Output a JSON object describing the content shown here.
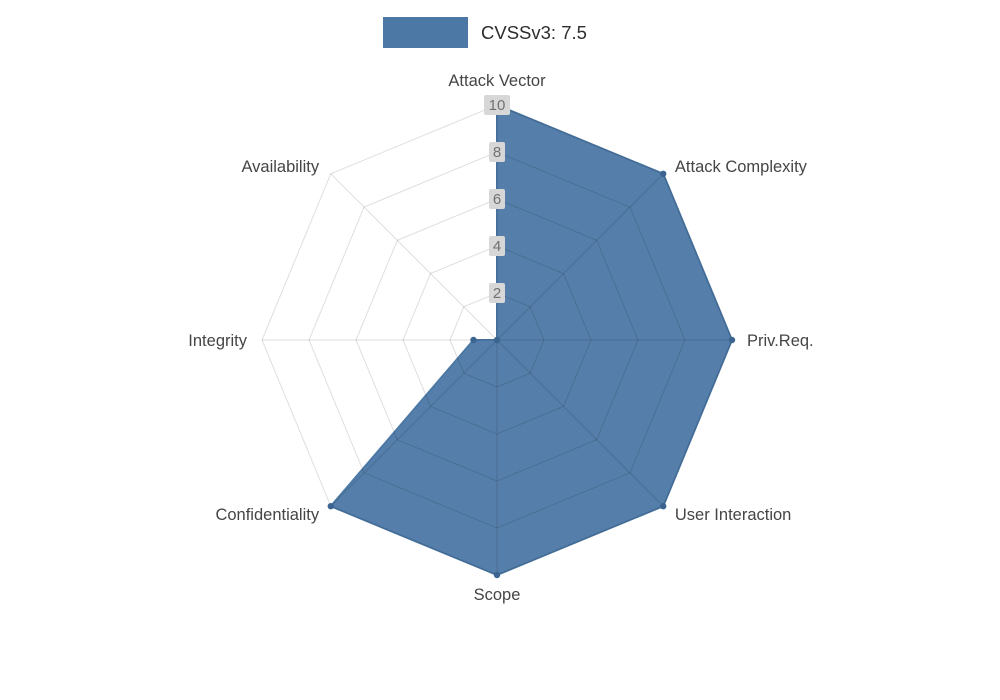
{
  "legend": {
    "label": "CVSSv3: 7.5"
  },
  "colors": {
    "series": "#4c78a5",
    "series_point": "#3b6590",
    "grid": "rgba(0,0,0,0.13)",
    "tick_box": "#d7d7d7",
    "tick_text": "#717171",
    "axis_label": "#454545"
  },
  "chart_data": {
    "type": "radar",
    "title": "CVSSv3: 7.5",
    "categories": [
      "Attack Vector",
      "Attack Complexity",
      "Priv.Req.",
      "User Interaction",
      "Scope",
      "Confidentiality",
      "Integrity",
      "Availability"
    ],
    "series": [
      {
        "name": "CVSSv3: 7.5",
        "values": [
          10,
          10,
          10,
          10,
          10,
          10,
          1,
          0
        ],
        "color": "#4c78a5"
      }
    ],
    "ticks": [
      2,
      4,
      6,
      8,
      10
    ],
    "max": 10,
    "grid": true,
    "legend_position": "top-center"
  }
}
